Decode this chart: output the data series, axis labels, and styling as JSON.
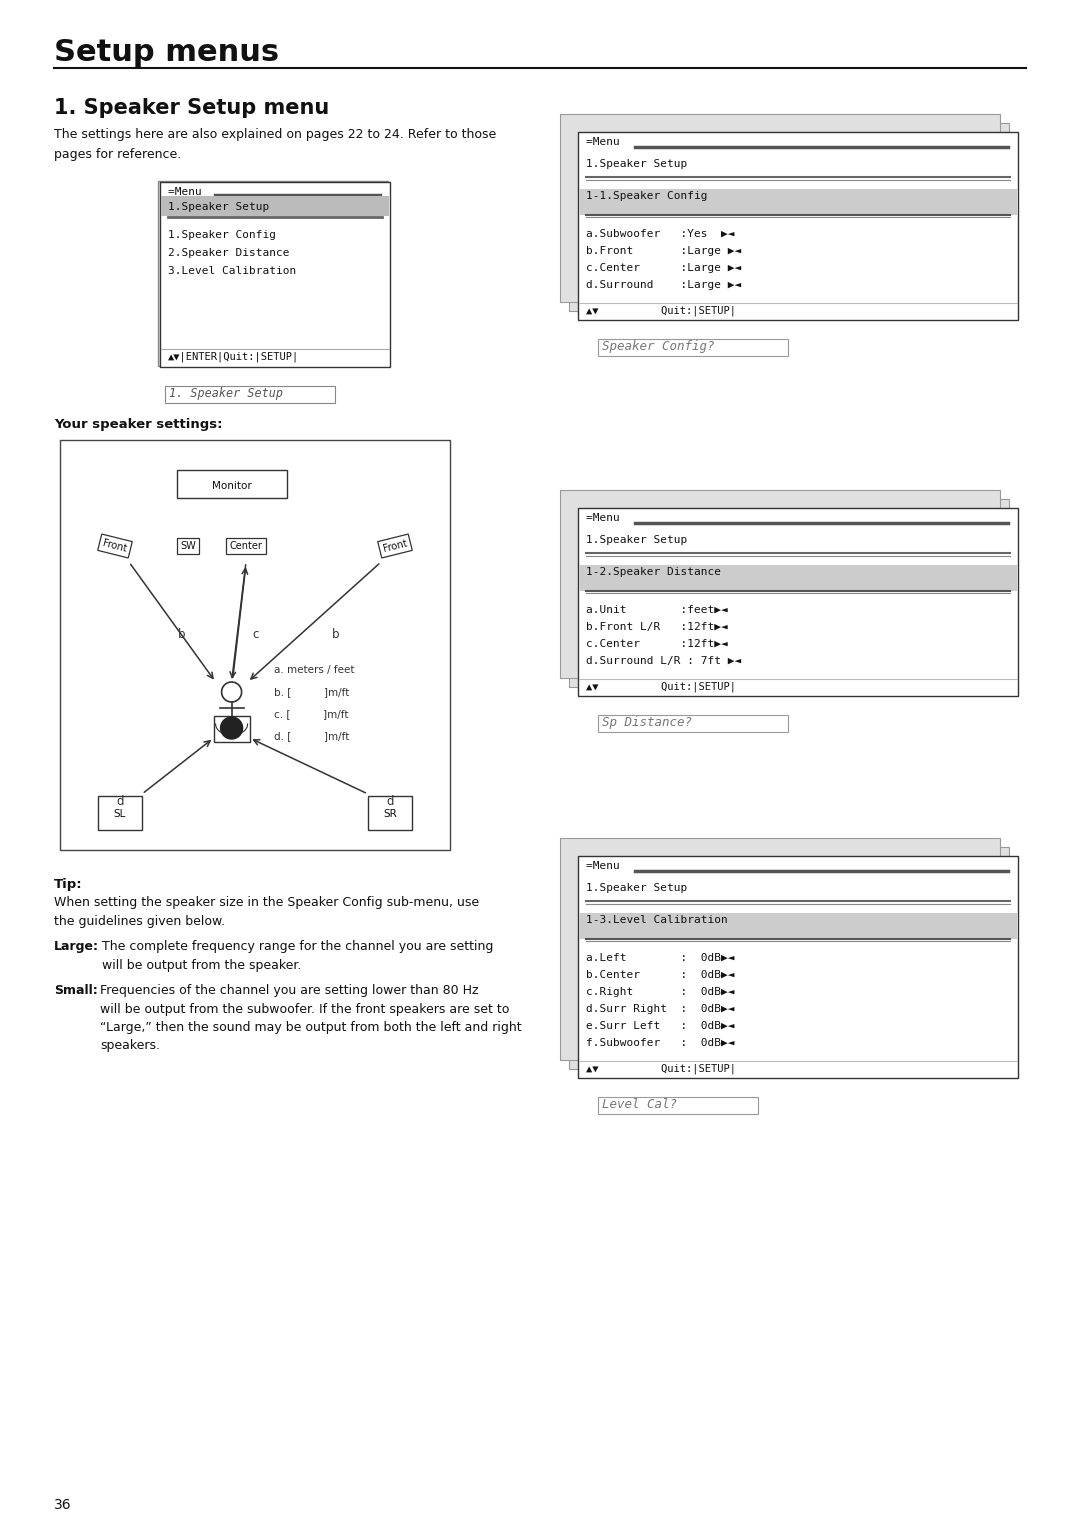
{
  "page_title": "Setup menus",
  "section_title": "1. Speaker Setup menu",
  "section_desc1": "The settings here are also explained on pages 22 to 24. Refer to those",
  "section_desc2": "pages for reference.",
  "menu1_items": [
    "1.Speaker Config",
    "2.Speaker Distance",
    "3.Level Calibration"
  ],
  "lcd1_label": "1. Speaker Setup",
  "speaker_settings_label": "Your speaker settings:",
  "menu2_items": [
    "a.Subwoofer   :Yes  ▶◄",
    "b.Front       :Large ▶◄",
    "c.Center      :Large ▶◄",
    "d.Surround    :Large ▶◄"
  ],
  "lcd2_label": "Speaker Config?",
  "menu3_items": [
    "a.Unit        :feet▶◄",
    "b.Front L/R   :12ft▶◄",
    "c.Center      :12ft▶◄",
    "d.Surround L/R : 7ft ▶◄"
  ],
  "lcd3_label": "Sp Distance?",
  "menu4_items": [
    "a.Left        :  0dB▶◄",
    "b.Center      :  0dB▶◄",
    "c.Right       :  0dB▶◄",
    "d.Surr Right  :  0dB▶◄",
    "e.Surr Left   :  0dB▶◄",
    "f.Subwoofer   :  0dB▶◄"
  ],
  "lcd4_label": "Level Cal?",
  "tip_title": "Tip:",
  "tip_body": "When setting the speaker size in the Speaker Config sub-menu, use\nthe guidelines given below.",
  "tip_large_text": "The complete frequency range for the channel you are setting\nwill be output from the speaker.",
  "tip_small_text": "Frequencies of the channel you are setting lower than 80 Hz\nwill be output from the subwoofer. If the front speakers are set to\n“Large,” then the sound may be output from both the left and right\nspeakers.",
  "page_number": "36",
  "bg_color": "#ffffff"
}
